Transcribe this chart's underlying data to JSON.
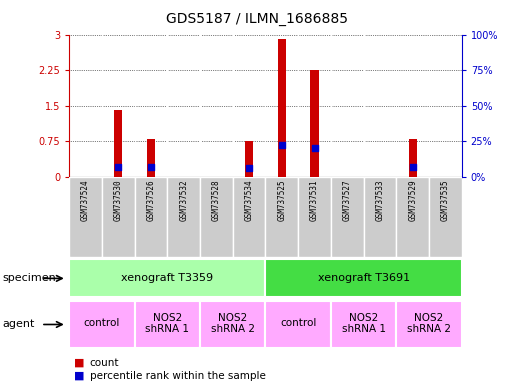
{
  "title": "GDS5187 / ILMN_1686885",
  "samples": [
    "GSM737524",
    "GSM737530",
    "GSM737526",
    "GSM737532",
    "GSM737528",
    "GSM737534",
    "GSM737525",
    "GSM737531",
    "GSM737527",
    "GSM737533",
    "GSM737529",
    "GSM737535"
  ],
  "counts": [
    0.0,
    1.4,
    0.8,
    0.0,
    0.0,
    0.75,
    2.9,
    2.25,
    0.0,
    0.0,
    0.8,
    0.0
  ],
  "percentile_ranks_pct": [
    0.0,
    7.0,
    7.0,
    0.0,
    0.0,
    6.0,
    22.0,
    20.0,
    0.0,
    0.0,
    7.0,
    0.0
  ],
  "ylim_left": [
    0,
    3
  ],
  "ylim_right": [
    0,
    100
  ],
  "yticks_left": [
    0,
    0.75,
    1.5,
    2.25,
    3
  ],
  "ytick_labels_left": [
    "0",
    "0.75",
    "1.5",
    "2.25",
    "3"
  ],
  "yticks_right": [
    0,
    25,
    50,
    75,
    100
  ],
  "ytick_labels_right": [
    "0%",
    "25%",
    "50%",
    "75%",
    "100%"
  ],
  "specimen_groups": [
    {
      "label": "xenograft T3359",
      "start": 0,
      "end": 6,
      "color": "#aaffaa"
    },
    {
      "label": "xenograft T3691",
      "start": 6,
      "end": 12,
      "color": "#44dd44"
    }
  ],
  "agent_groups": [
    {
      "label": "control",
      "start": 0,
      "end": 2,
      "color": "#ffaaff"
    },
    {
      "label": "NOS2\nshRNA 1",
      "start": 2,
      "end": 4,
      "color": "#ffaaff"
    },
    {
      "label": "NOS2\nshRNA 2",
      "start": 4,
      "end": 6,
      "color": "#ffaaff"
    },
    {
      "label": "control",
      "start": 6,
      "end": 8,
      "color": "#ffaaff"
    },
    {
      "label": "NOS2\nshRNA 1",
      "start": 8,
      "end": 10,
      "color": "#ffaaff"
    },
    {
      "label": "NOS2\nshRNA 2",
      "start": 10,
      "end": 12,
      "color": "#ffaaff"
    }
  ],
  "bar_color": "#cc0000",
  "dot_color": "#0000cc",
  "bar_width": 0.25,
  "dot_size": 25,
  "background_color": "#ffffff",
  "left_axis_color": "#cc0000",
  "right_axis_color": "#0000cc",
  "specimen_label": "specimen",
  "agent_label": "agent",
  "legend_count": "count",
  "legend_percentile": "percentile rank within the sample",
  "sample_box_color": "#cccccc",
  "n_samples": 12
}
